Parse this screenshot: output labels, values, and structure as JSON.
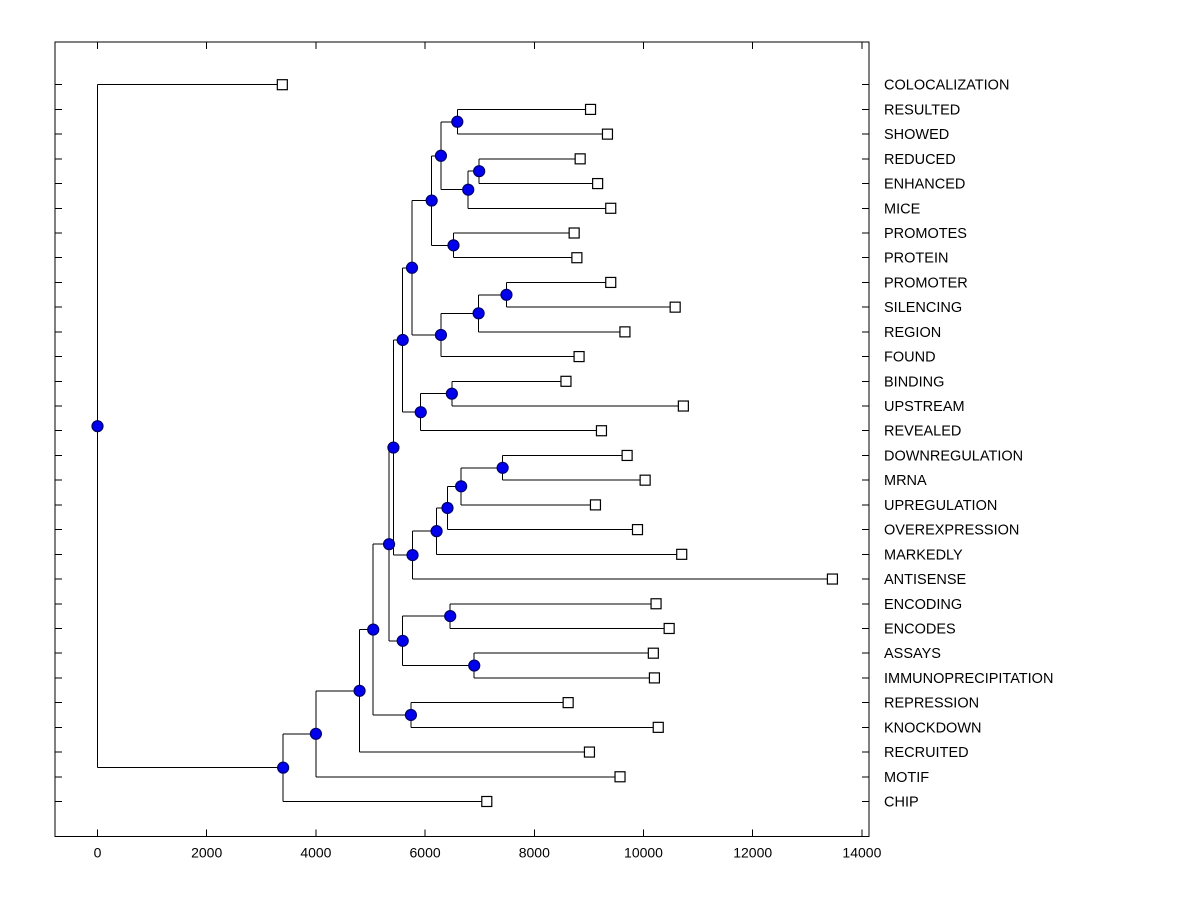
{
  "figure": {
    "background": "#ffffff",
    "title": ""
  },
  "styles": {
    "link_color": "#000000",
    "axis_color": "#000000",
    "node_fill": "#0000EE",
    "node_stroke": "#00006a",
    "leaf_marker_fill": "#ffffff",
    "leaf_marker_stroke": "#000000",
    "label_color": "#000000"
  },
  "chart_data": {
    "type": "dendrogram",
    "orientation": "horizontal-root-left",
    "title": "",
    "xlabel": "",
    "ylabel": "",
    "grid": false,
    "legend": null,
    "x_axis": {
      "min": 0,
      "max": 14000,
      "ticks": [
        0,
        2000,
        4000,
        6000,
        8000,
        10000,
        12000,
        14000
      ]
    },
    "leaf_marker": "open-square",
    "node_marker": "filled-circle",
    "leaves": [
      {
        "id": "L0",
        "label": "COLOCALIZATION",
        "value": 3385
      },
      {
        "id": "L1",
        "label": "RESULTED",
        "value": 9030
      },
      {
        "id": "L2",
        "label": "SHOWED",
        "value": 9340
      },
      {
        "id": "L3",
        "label": "REDUCED",
        "value": 8840
      },
      {
        "id": "L4",
        "label": "ENHANCED",
        "value": 9160
      },
      {
        "id": "L5",
        "label": "MICE",
        "value": 9400
      },
      {
        "id": "L6",
        "label": "PROMOTES",
        "value": 8730
      },
      {
        "id": "L7",
        "label": "PROTEIN",
        "value": 8780
      },
      {
        "id": "L8",
        "label": "PROMOTER",
        "value": 9400
      },
      {
        "id": "L9",
        "label": "SILENCING",
        "value": 10580
      },
      {
        "id": "L10",
        "label": "REGION",
        "value": 9660
      },
      {
        "id": "L11",
        "label": "FOUND",
        "value": 8820
      },
      {
        "id": "L12",
        "label": "BINDING",
        "value": 8580
      },
      {
        "id": "L13",
        "label": "UPSTREAM",
        "value": 10730
      },
      {
        "id": "L14",
        "label": "REVEALED",
        "value": 9230
      },
      {
        "id": "L15",
        "label": "DOWNREGULATION",
        "value": 9700
      },
      {
        "id": "L16",
        "label": "MRNA",
        "value": 10030
      },
      {
        "id": "L17",
        "label": "UPREGULATION",
        "value": 9120
      },
      {
        "id": "L18",
        "label": "OVEREXPRESSION",
        "value": 9890
      },
      {
        "id": "L19",
        "label": "MARKEDLY",
        "value": 10700
      },
      {
        "id": "L20",
        "label": "ANTISENSE",
        "value": 13460
      },
      {
        "id": "L21",
        "label": "ENCODING",
        "value": 10230
      },
      {
        "id": "L22",
        "label": "ENCODES",
        "value": 10470
      },
      {
        "id": "L23",
        "label": "ASSAYS",
        "value": 10180
      },
      {
        "id": "L24",
        "label": "IMMUNOPRECIPITATION",
        "value": 10200
      },
      {
        "id": "L25",
        "label": "REPRESSION",
        "value": 8620
      },
      {
        "id": "L26",
        "label": "KNOCKDOWN",
        "value": 10270
      },
      {
        "id": "L27",
        "label": "RECRUITED",
        "value": 9010
      },
      {
        "id": "L28",
        "label": "MOTIF",
        "value": 9570
      },
      {
        "id": "L29",
        "label": "CHIP",
        "value": 7130
      }
    ],
    "merges": [
      {
        "id": "M0",
        "children": [
          "L1",
          "L2"
        ],
        "value": 6590
      },
      {
        "id": "M1",
        "children": [
          "L3",
          "L4"
        ],
        "value": 6990
      },
      {
        "id": "M2",
        "children": [
          "M1",
          "L5"
        ],
        "value": 6790
      },
      {
        "id": "M3",
        "children": [
          "M0",
          "M2"
        ],
        "value": 6290
      },
      {
        "id": "M4",
        "children": [
          "L6",
          "L7"
        ],
        "value": 6520
      },
      {
        "id": "M5",
        "children": [
          "M3",
          "M4"
        ],
        "value": 6120
      },
      {
        "id": "M6",
        "children": [
          "L8",
          "L9"
        ],
        "value": 7490
      },
      {
        "id": "M7",
        "children": [
          "M6",
          "L10"
        ],
        "value": 6980
      },
      {
        "id": "M8",
        "children": [
          "M7",
          "L11"
        ],
        "value": 6290
      },
      {
        "id": "M9",
        "children": [
          "M5",
          "M8"
        ],
        "value": 5760
      },
      {
        "id": "M10",
        "children": [
          "L12",
          "L13"
        ],
        "value": 6490
      },
      {
        "id": "M11",
        "children": [
          "M10",
          "L14"
        ],
        "value": 5920
      },
      {
        "id": "M12",
        "children": [
          "M9",
          "M11"
        ],
        "value": 5590
      },
      {
        "id": "M13",
        "children": [
          "L15",
          "L16"
        ],
        "value": 7420
      },
      {
        "id": "M14",
        "children": [
          "M13",
          "L17"
        ],
        "value": 6660
      },
      {
        "id": "M15",
        "children": [
          "M14",
          "L18"
        ],
        "value": 6410
      },
      {
        "id": "M16",
        "children": [
          "M15",
          "L19"
        ],
        "value": 6210
      },
      {
        "id": "M17",
        "children": [
          "M16",
          "L20"
        ],
        "value": 5770
      },
      {
        "id": "M18",
        "children": [
          "M12",
          "M17"
        ],
        "value": 5420
      },
      {
        "id": "M19",
        "children": [
          "L21",
          "L22"
        ],
        "value": 6460
      },
      {
        "id": "M20",
        "children": [
          "L23",
          "L24"
        ],
        "value": 6900
      },
      {
        "id": "M21",
        "children": [
          "M19",
          "M20"
        ],
        "value": 5590
      },
      {
        "id": "M22",
        "children": [
          "M18",
          "M21"
        ],
        "value": 5340
      },
      {
        "id": "M23",
        "children": [
          "L25",
          "L26"
        ],
        "value": 5740
      },
      {
        "id": "M24",
        "children": [
          "M22",
          "M23"
        ],
        "value": 5050
      },
      {
        "id": "M25",
        "children": [
          "M24",
          "L27"
        ],
        "value": 4800
      },
      {
        "id": "M26",
        "children": [
          "M25",
          "L28"
        ],
        "value": 4000
      },
      {
        "id": "M27",
        "children": [
          "M26",
          "L29"
        ],
        "value": 3400
      },
      {
        "id": "M28",
        "children": [
          "L0",
          "M27"
        ],
        "value": 0
      }
    ]
  }
}
